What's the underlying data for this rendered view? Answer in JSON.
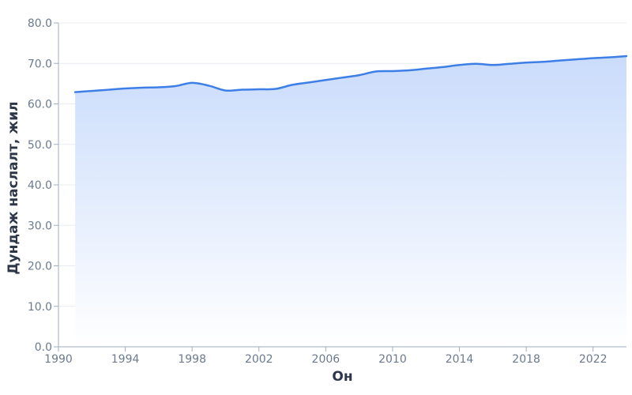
{
  "chart_data": {
    "type": "area",
    "xlabel": "Он",
    "ylabel": "Дундаж наслалт, жил",
    "xlim": [
      1990,
      2024
    ],
    "ylim": [
      0,
      80
    ],
    "y_ticks": [
      "0.0",
      "10.0",
      "20.0",
      "30.0",
      "40.0",
      "50.0",
      "60.0",
      "70.0",
      "80.0"
    ],
    "x_ticks": [
      "1990",
      "1994",
      "1998",
      "2002",
      "2006",
      "2010",
      "2014",
      "2018",
      "2022"
    ],
    "grid": true,
    "colors": {
      "line": "#3d7fe6",
      "fill_top": "#c7dafb",
      "fill_bottom": "#ffffff",
      "grid": "#e8ecf2",
      "axis": "#a0aec0"
    },
    "series": [
      {
        "x": [
          1991,
          1992,
          1993,
          1994,
          1995,
          1996,
          1997,
          1998,
          1999,
          2000,
          2001,
          2002,
          2003,
          2004,
          2005,
          2006,
          2007,
          2008,
          2009,
          2010,
          2011,
          2012,
          2013,
          2014,
          2015,
          2016,
          2017,
          2018,
          2019,
          2020,
          2021,
          2022,
          2023,
          2024
        ],
        "values": [
          62.9,
          63.2,
          63.5,
          63.8,
          64.0,
          64.1,
          64.4,
          65.2,
          64.5,
          63.3,
          63.5,
          63.6,
          63.7,
          64.7,
          65.3,
          65.9,
          66.5,
          67.1,
          68.0,
          68.1,
          68.3,
          68.7,
          69.1,
          69.6,
          69.9,
          69.6,
          69.9,
          70.2,
          70.4,
          70.7,
          71.0,
          71.3,
          71.5,
          71.8
        ]
      }
    ]
  }
}
